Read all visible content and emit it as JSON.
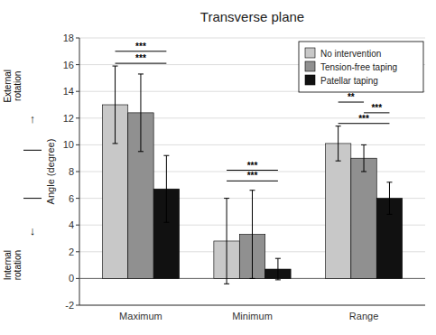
{
  "chart_data": {
    "type": "bar",
    "title": "Transverse plane",
    "ylabel": "Angle (degree)",
    "categories": [
      "Maximum",
      "Minimum",
      "Range"
    ],
    "series": [
      {
        "name": "No intervention",
        "color": "#C8C8C8",
        "values": [
          13.0,
          2.8,
          10.1
        ],
        "errors": [
          2.9,
          3.2,
          1.3
        ]
      },
      {
        "name": "Tension-free taping",
        "color": "#909090",
        "values": [
          12.4,
          3.3,
          9.0
        ],
        "errors": [
          2.9,
          3.3,
          1.0
        ]
      },
      {
        "name": "Patellar taping",
        "color": "#111111",
        "values": [
          6.7,
          0.7,
          6.0
        ],
        "errors": [
          2.5,
          0.8,
          1.2
        ]
      }
    ],
    "ylim": [
      -2,
      18
    ],
    "yticks": [
      -2,
      0,
      2,
      4,
      6,
      8,
      10,
      12,
      14,
      16,
      18
    ],
    "grid": true,
    "legend": "upper right",
    "annotations": [
      {
        "category": 0,
        "from": 0,
        "to": 2,
        "y": 17.0,
        "text": "***"
      },
      {
        "category": 0,
        "from": 0,
        "to": 2,
        "y": 16.1,
        "text": "***"
      },
      {
        "category": 1,
        "from": 0,
        "to": 2,
        "y": 8.1,
        "text": "***"
      },
      {
        "category": 1,
        "from": 0,
        "to": 2,
        "y": 7.3,
        "text": "***"
      },
      {
        "category": 2,
        "from": 0,
        "to": 1,
        "y": 13.2,
        "text": "**"
      },
      {
        "category": 2,
        "from": 1,
        "to": 2,
        "y": 12.4,
        "text": "***"
      },
      {
        "category": 2,
        "from": 0,
        "to": 2,
        "y": 11.6,
        "text": "***"
      }
    ],
    "side_labels": [
      "External\nrotation",
      "↑",
      "↓",
      "Internal\nrotation"
    ]
  }
}
